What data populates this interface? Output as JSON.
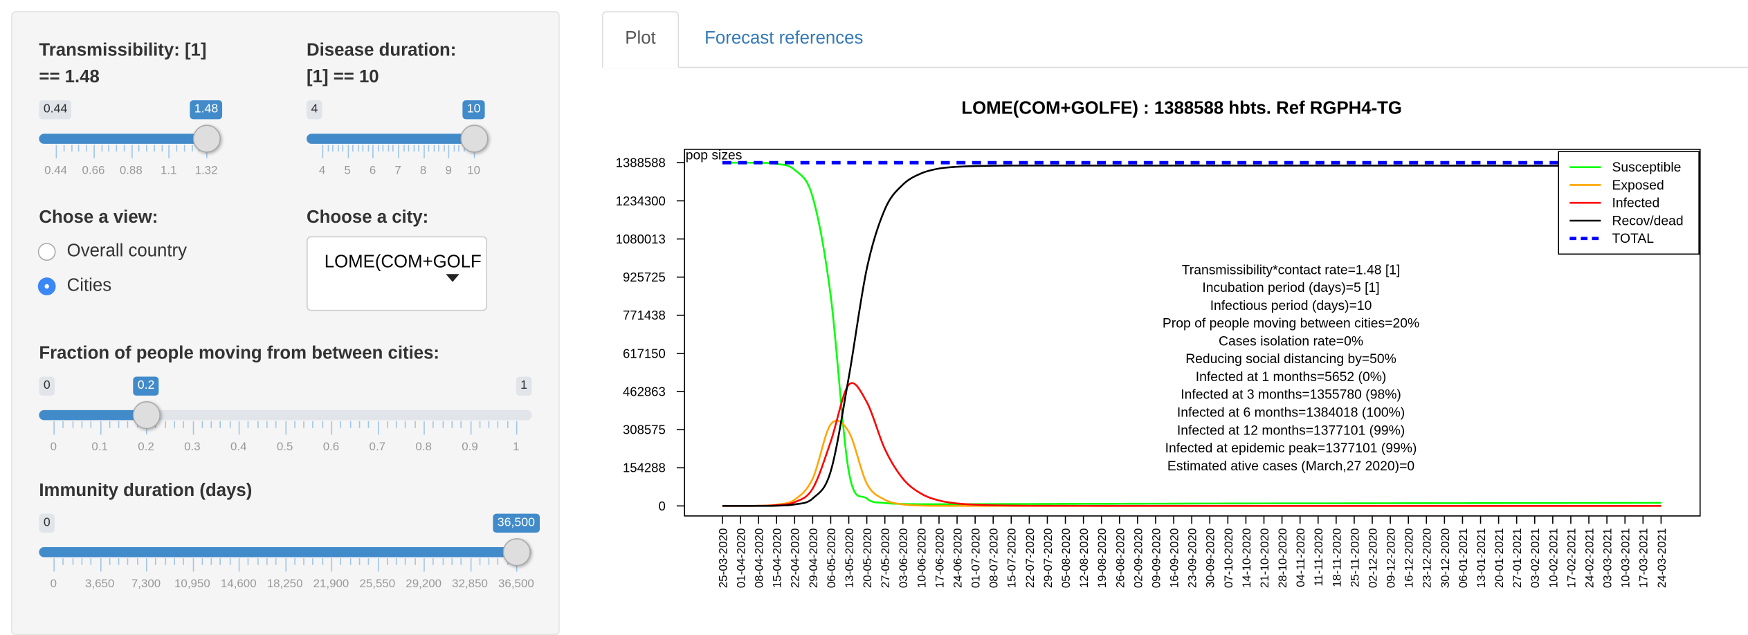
{
  "sidebar": {
    "transmissibility": {
      "label_line1": "Transmissibility: [1]",
      "label_line2": "== 1.48",
      "min": "0.44",
      "max": "1.48",
      "value": "1.48",
      "value_num": 1.48,
      "range": [
        0.44,
        1.48
      ],
      "grid": [
        "0.44",
        "0.66",
        "0.88",
        "1.1",
        "1.32"
      ]
    },
    "duration": {
      "label_line1": "Disease duration:",
      "label_line2": "[1] == 10",
      "min": "4",
      "value": "10",
      "value_num": 10,
      "range": [
        4,
        10
      ],
      "grid": [
        "4",
        "5",
        "6",
        "7",
        "8",
        "9",
        "10"
      ]
    },
    "view": {
      "label": "Chose a view:",
      "options": [
        {
          "label": "Overall country",
          "selected": false
        },
        {
          "label": "Cities",
          "selected": true
        }
      ]
    },
    "city": {
      "label": "Choose a city:",
      "selected": "LOME(COM+GOLFE)"
    },
    "fraction": {
      "label": "Fraction of people moving from between cities:",
      "min": "0",
      "max": "1",
      "value": "0.2",
      "value_num": 0.2,
      "range": [
        0,
        1
      ],
      "grid": [
        "0",
        "0.1",
        "0.2",
        "0.3",
        "0.4",
        "0.5",
        "0.6",
        "0.7",
        "0.8",
        "0.9",
        "1"
      ]
    },
    "immunity": {
      "label": "Immunity duration (days)",
      "min": "0",
      "value": "36,500",
      "value_num": 36500,
      "range": [
        0,
        36500
      ],
      "grid": [
        "0",
        "3,650",
        "7,300",
        "10,950",
        "14,600",
        "18,250",
        "21,900",
        "25,550",
        "29,200",
        "32,850",
        "36,500"
      ]
    }
  },
  "tabs": [
    {
      "label": "Plot",
      "active": true
    },
    {
      "label": "Forecast references",
      "active": false
    }
  ],
  "chart_data": {
    "type": "line",
    "title": "LOME(COM+GOLFE) : 1388588 hbts. Ref RGPH4-TG",
    "corner_label": "pop sizes",
    "ylim": [
      0,
      1388588
    ],
    "yticks": [
      0,
      154288,
      308575,
      462863,
      617150,
      771438,
      925725,
      1080013,
      1234300,
      1388588
    ],
    "legend_position": "top-right",
    "categories": [
      "25-03-2020",
      "01-04-2020",
      "08-04-2020",
      "15-04-2020",
      "22-04-2020",
      "29-04-2020",
      "06-05-2020",
      "13-05-2020",
      "20-05-2020",
      "27-05-2020",
      "03-06-2020",
      "10-06-2020",
      "17-06-2020",
      "24-06-2020",
      "01-07-2020",
      "08-07-2020",
      "15-07-2020",
      "22-07-2020",
      "29-07-2020",
      "05-08-2020",
      "12-08-2020",
      "19-08-2020",
      "26-08-2020",
      "02-09-2020",
      "09-09-2020",
      "16-09-2020",
      "23-09-2020",
      "30-09-2020",
      "07-10-2020",
      "14-10-2020",
      "21-10-2020",
      "28-10-2020",
      "04-11-2020",
      "11-11-2020",
      "18-11-2020",
      "25-11-2020",
      "02-12-2020",
      "09-12-2020",
      "16-12-2020",
      "23-12-2020",
      "30-12-2020",
      "06-01-2021",
      "13-01-2021",
      "20-01-2021",
      "27-01-2021",
      "03-02-2021",
      "10-02-2021",
      "17-02-2021",
      "24-02-2021",
      "03-03-2021",
      "10-03-2021",
      "17-03-2021",
      "24-03-2021"
    ],
    "series": [
      {
        "name": "Susceptible",
        "color": "#00ff00",
        "values": [
          1388588,
          1388500,
          1388000,
          1384000,
          1360000,
          1250000,
          850000,
          140000,
          30000,
          12000,
          8000,
          7000,
          7000,
          7000,
          7200,
          7400,
          7600,
          7800,
          8000,
          8200,
          8400,
          8600,
          8800,
          9000,
          9200,
          9400,
          9600,
          9800,
          10000,
          10100,
          10200,
          10300,
          10400,
          10500,
          10600,
          10700,
          10800,
          10900,
          11000,
          11100,
          11200,
          11300,
          11400,
          11500,
          11600,
          11700,
          11800,
          11900,
          12000,
          12100,
          12200,
          12300,
          12400
        ]
      },
      {
        "name": "Exposed",
        "color": "#ffa500",
        "values": [
          0,
          200,
          1000,
          5000,
          25000,
          110000,
          330000,
          300000,
          90000,
          25000,
          6000,
          1500,
          500,
          200,
          100,
          50,
          0,
          0,
          0,
          0,
          0,
          0,
          0,
          0,
          0,
          0,
          0,
          0,
          0,
          0,
          0,
          0,
          0,
          0,
          0,
          0,
          0,
          0,
          0,
          0,
          0,
          0,
          0,
          0,
          0,
          0,
          0,
          0,
          0,
          0,
          0,
          0,
          0
        ]
      },
      {
        "name": "Infected",
        "color": "#ff0000",
        "values": [
          0,
          100,
          500,
          3000,
          15000,
          70000,
          260000,
          490000,
          420000,
          230000,
          110000,
          50000,
          22000,
          10000,
          5000,
          2500,
          1200,
          800,
          600,
          500,
          400,
          300,
          250,
          200,
          150,
          120,
          100,
          80,
          60,
          50,
          40,
          30,
          20,
          10,
          0,
          0,
          0,
          0,
          0,
          0,
          0,
          0,
          0,
          0,
          0,
          0,
          0,
          0,
          0,
          0,
          0,
          0,
          0
        ]
      },
      {
        "name": "Recov/dead",
        "color": "#000000",
        "values": [
          0,
          50,
          200,
          1000,
          6000,
          30000,
          140000,
          520000,
          960000,
          1200000,
          1300000,
          1345000,
          1365000,
          1372000,
          1375000,
          1376500,
          1377000,
          1377100,
          1377100,
          1377100,
          1377100,
          1377100,
          1377100,
          1377100,
          1377100,
          1377000,
          1377000,
          1377000,
          1377000,
          1377000,
          1377000,
          1377000,
          1377000,
          1377000,
          1377000,
          1377000,
          1377000,
          1377000,
          1377000,
          1377000,
          1376800,
          1376800,
          1376600,
          1376600,
          1376400,
          1376400,
          1376200,
          1376200,
          1376000,
          1376000,
          1376000,
          1376000,
          1376000
        ]
      },
      {
        "name": "TOTAL",
        "color": "#0000ff",
        "dashed": true,
        "constant": 1388588
      }
    ],
    "annotations": [
      "Transmissibility*contact rate=1.48 [1]",
      "Incubation period (days)=5 [1]",
      "Infectious period (days)=10",
      "Prop of people moving between cities=20%",
      "Cases isolation rate=0%",
      "Reducing social distancing by=50%",
      "Infected at 1 months=5652 (0%)",
      "Infected at 3 months=1355780 (98%)",
      "Infected at 6 months=1384018 (100%)",
      "Infected at 12 months=1377101 (99%)",
      "Infected at epidemic peak=1377101 (99%)",
      "Estimated ative cases (March,27 2020)=0"
    ]
  }
}
